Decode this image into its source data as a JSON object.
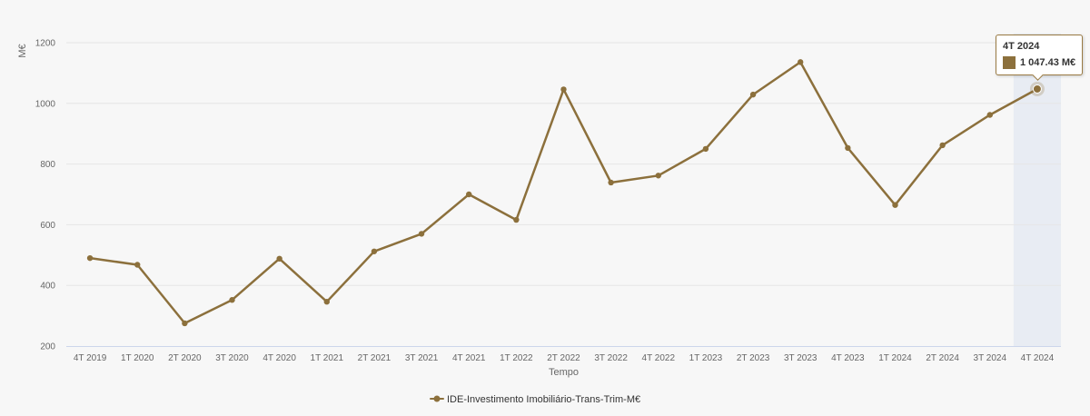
{
  "chart_data": {
    "type": "line",
    "ylabel": "M€",
    "xlabel": "Tempo",
    "ylim": [
      200,
      1200
    ],
    "yticks": [
      200,
      400,
      600,
      800,
      1000,
      1200
    ],
    "grid": true,
    "legend_position": "bottom-center",
    "categories": [
      "4T 2019",
      "1T 2020",
      "2T 2020",
      "3T 2020",
      "4T 2020",
      "1T 2021",
      "2T 2021",
      "3T 2021",
      "4T 2021",
      "1T 2022",
      "2T 2022",
      "3T 2022",
      "4T 2022",
      "1T 2023",
      "2T 2023",
      "3T 2023",
      "4T 2023",
      "1T 2024",
      "2T 2024",
      "3T 2024",
      "4T 2024"
    ],
    "series": [
      {
        "name": "IDE-Investimento Imobiliário-Trans-Trim-M€",
        "color": "#8c703c",
        "values": [
          490,
          468,
          275,
          352,
          488,
          346,
          512,
          570,
          700,
          616,
          1046,
          739,
          762,
          850,
          1029,
          1136,
          853,
          665,
          862,
          962,
          1047.43
        ]
      }
    ],
    "highlight": {
      "category": "4T 2024",
      "value_label": "1 047.43 M€",
      "band_color": "#e8ecf3"
    }
  }
}
